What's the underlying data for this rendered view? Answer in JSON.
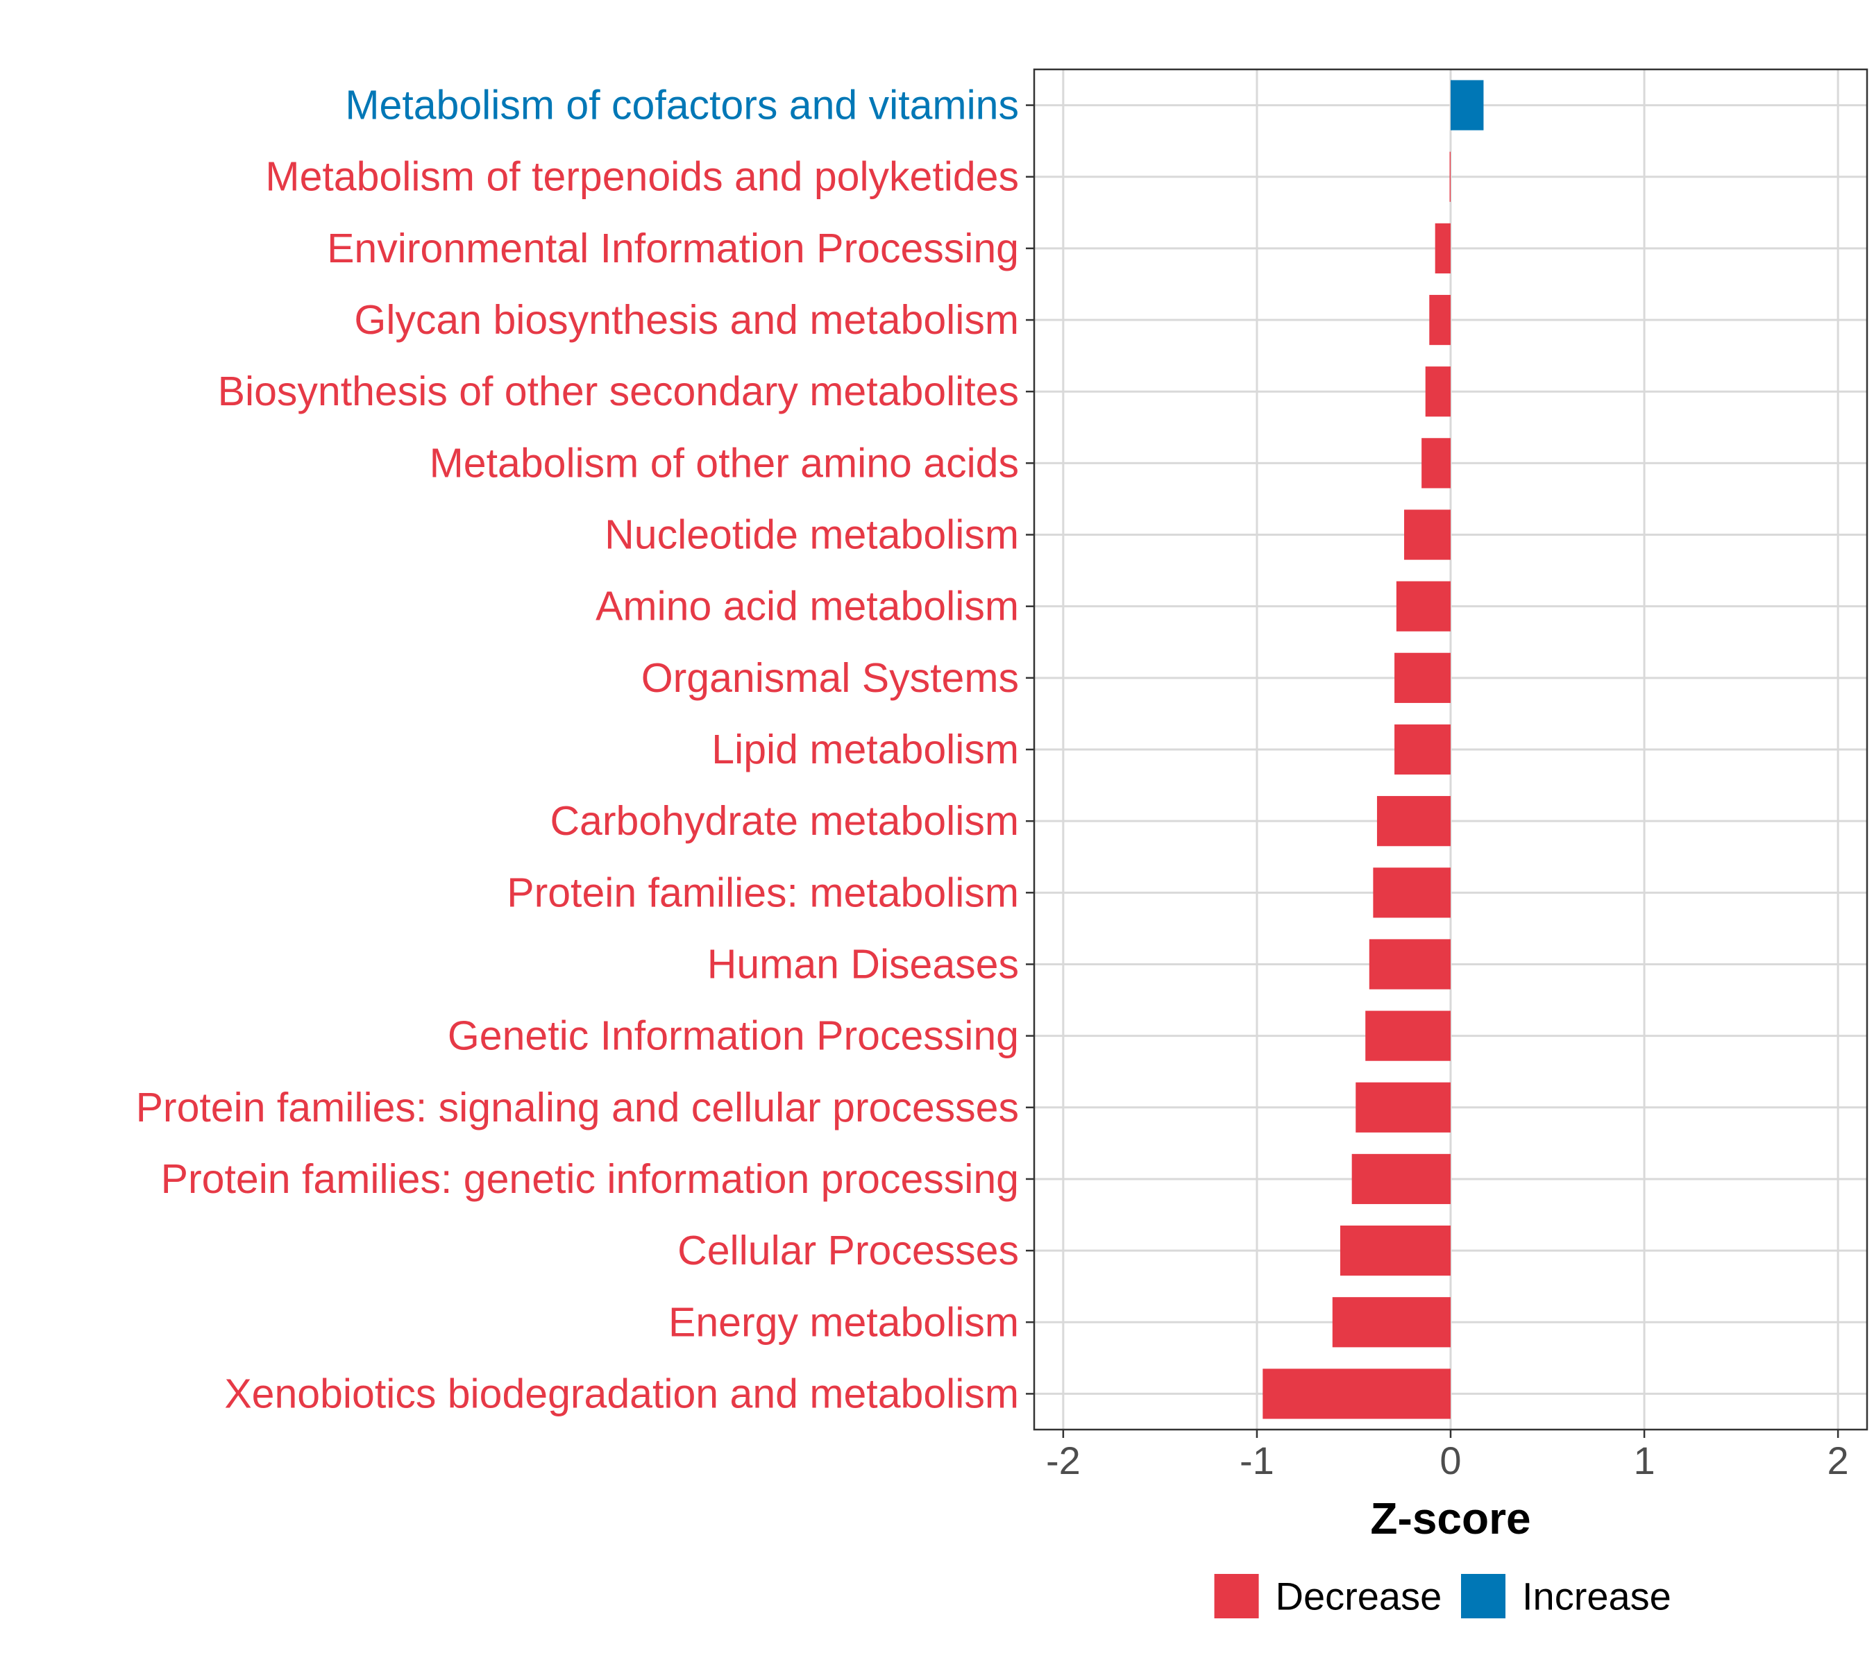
{
  "chart_data": {
    "type": "bar",
    "orientation": "horizontal",
    "title": "",
    "xlabel": "Z-score",
    "ylabel": "",
    "xlim": [
      -2.15,
      2.15
    ],
    "xticks": [
      -2,
      -1,
      0,
      1,
      2
    ],
    "xtick_labels": [
      "-2",
      "-1",
      "0",
      "1",
      "2"
    ],
    "grid": true,
    "legend_position": "bottom",
    "colors": {
      "Decrease": "#e63946",
      "Increase": "#0077b6"
    },
    "legend": [
      {
        "label": "Decrease",
        "color": "#e63946"
      },
      {
        "label": "Increase",
        "color": "#0077b6"
      }
    ],
    "categories": [
      "Metabolism of cofactors and vitamins",
      "Metabolism of terpenoids and polyketides",
      "Environmental Information Processing",
      "Glycan biosynthesis and metabolism",
      "Biosynthesis of other secondary metabolites",
      "Metabolism of other amino acids",
      "Nucleotide metabolism",
      "Amino acid metabolism",
      "Organismal Systems",
      "Lipid metabolism",
      "Carbohydrate metabolism",
      "Protein families: metabolism",
      "Human Diseases",
      "Genetic Information Processing",
      "Protein families: signaling and cellular processes",
      "Protein families: genetic information processing",
      "Cellular Processes",
      "Energy metabolism",
      "Xenobiotics biodegradation and metabolism"
    ],
    "values": [
      0.17,
      -0.005,
      -0.08,
      -0.11,
      -0.13,
      -0.15,
      -0.24,
      -0.28,
      -0.29,
      -0.29,
      -0.38,
      -0.4,
      -0.42,
      -0.44,
      -0.49,
      -0.51,
      -0.57,
      -0.61,
      -0.97
    ],
    "groups": [
      "Increase",
      "Decrease",
      "Decrease",
      "Decrease",
      "Decrease",
      "Decrease",
      "Decrease",
      "Decrease",
      "Decrease",
      "Decrease",
      "Decrease",
      "Decrease",
      "Decrease",
      "Decrease",
      "Decrease",
      "Decrease",
      "Decrease",
      "Decrease",
      "Decrease"
    ]
  }
}
